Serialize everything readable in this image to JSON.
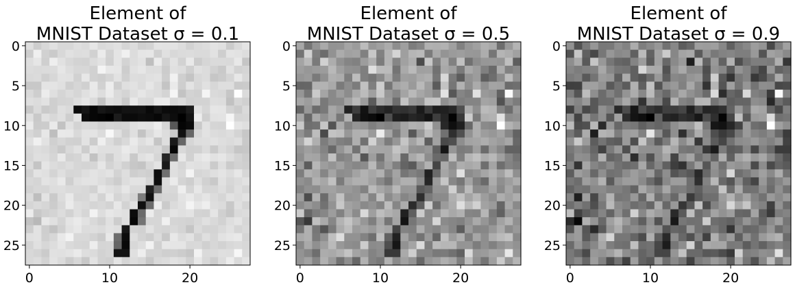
{
  "figure": {
    "background": "#ffffff",
    "colormap": "gray_r"
  },
  "chart_data": [
    {
      "type": "heatmap",
      "title_line1": "Element of",
      "title_line2": "MNIST Dataset σ = 0.1",
      "sigma": 0.1,
      "grid_size": 28,
      "xlim": [
        -0.5,
        27.5
      ],
      "ylim": [
        27.5,
        -0.5
      ],
      "xticks": [
        0,
        10,
        20
      ],
      "yticks": [
        0,
        5,
        10,
        15,
        20,
        25
      ],
      "xticklabels": [
        "0",
        "10",
        "20"
      ],
      "yticklabels": [
        "0",
        "5",
        "10",
        "15",
        "20",
        "25"
      ],
      "content": "handwritten digit 7 with gaussian noise"
    },
    {
      "type": "heatmap",
      "title_line1": "Element of",
      "title_line2": "MNIST Dataset σ = 0.5",
      "sigma": 0.5,
      "grid_size": 28,
      "xlim": [
        -0.5,
        27.5
      ],
      "ylim": [
        27.5,
        -0.5
      ],
      "xticks": [
        0,
        10,
        20
      ],
      "yticks": [
        0,
        5,
        10,
        15,
        20,
        25
      ],
      "xticklabels": [
        "0",
        "10",
        "20"
      ],
      "yticklabels": [
        "0",
        "5",
        "10",
        "15",
        "20",
        "25"
      ],
      "content": "handwritten digit 7 with gaussian noise"
    },
    {
      "type": "heatmap",
      "title_line1": "Element of",
      "title_line2": "MNIST Dataset σ = 0.9",
      "sigma": 0.9,
      "grid_size": 28,
      "xlim": [
        -0.5,
        27.5
      ],
      "ylim": [
        27.5,
        -0.5
      ],
      "xticks": [
        0,
        10,
        20
      ],
      "yticks": [
        0,
        5,
        10,
        15,
        20,
        25
      ],
      "xticklabels": [
        "0",
        "10",
        "20"
      ],
      "yticklabels": [
        "0",
        "5",
        "10",
        "15",
        "20",
        "25"
      ],
      "content": "handwritten digit 7 with gaussian noise"
    }
  ]
}
